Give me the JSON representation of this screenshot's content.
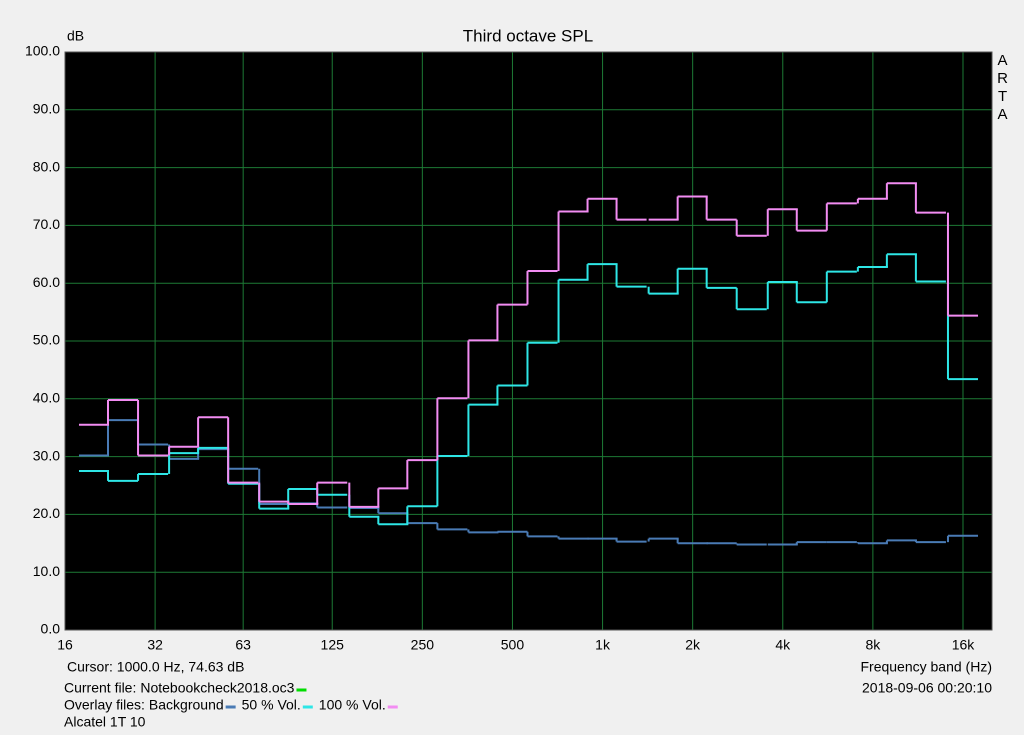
{
  "chart_data": {
    "type": "step",
    "title": "Third octave SPL",
    "y_label": "dB",
    "x_label": "Frequency band (Hz)",
    "watermark": "ARTA",
    "cursor": "Cursor:  1000.0 Hz, 74.63 dB",
    "current_file_label": "Current file:",
    "current_file": "Notebookcheck2018.oc3",
    "current_file_color": "#00dd00",
    "timestamp": "2018-09-06  00:20:10",
    "overlay_label": "Overlay files:",
    "device": "Alcatel 1T 10",
    "x_log": true,
    "grid": true,
    "xlim": [
      16,
      20000
    ],
    "ylim": [
      0,
      100
    ],
    "xticks": [
      16,
      32,
      63,
      125,
      250,
      500,
      {
        "value": 1000,
        "label": "1k"
      },
      {
        "value": 2000,
        "label": "2k"
      },
      {
        "value": 4000,
        "label": "4k"
      },
      {
        "value": 8000,
        "label": "8k"
      },
      {
        "value": 16000,
        "label": "16k"
      }
    ],
    "yticks": [
      {
        "value": 0,
        "label": "0.0"
      },
      {
        "value": 10,
        "label": "10.0"
      },
      {
        "value": 20,
        "label": "20.0"
      },
      {
        "value": 30,
        "label": "30.0"
      },
      {
        "value": 40,
        "label": "40.0"
      },
      {
        "value": 50,
        "label": "50.0"
      },
      {
        "value": 60,
        "label": "60.0"
      },
      {
        "value": 70,
        "label": "70.0"
      },
      {
        "value": 80,
        "label": "80.0"
      },
      {
        "value": 90,
        "label": "90.0"
      },
      {
        "value": 100,
        "label": "100.0"
      }
    ],
    "x": [
      20,
      25,
      31.5,
      40,
      50,
      63,
      80,
      100,
      125,
      160,
      200,
      250,
      315,
      400,
      500,
      630,
      800,
      1000,
      1250,
      1600,
      2000,
      2500,
      3150,
      4000,
      5000,
      6300,
      8000,
      10000,
      12500,
      16000
    ],
    "series": [
      {
        "name": "Background",
        "color": "#4a7bb5",
        "values": [
          30.2,
          36.3,
          32.1,
          29.6,
          31.3,
          27.9,
          21.8,
          21.9,
          21.2,
          21.1,
          20.2,
          18.5,
          17.4,
          16.9,
          17.0,
          16.2,
          15.8,
          15.8,
          15.3,
          15.8,
          15.0,
          15.0,
          14.8,
          14.8,
          15.2,
          15.2,
          15.0,
          15.5,
          15.2,
          16.3
        ]
      },
      {
        "name": "50 % Vol.",
        "color": "#2ee6e6",
        "values": [
          27.5,
          25.8,
          27.0,
          30.6,
          31.5,
          25.3,
          21.0,
          24.4,
          23.4,
          19.6,
          18.3,
          21.4,
          30.1,
          39.0,
          42.3,
          49.7,
          60.6,
          63.3,
          59.4,
          58.2,
          62.5,
          59.2,
          55.5,
          60.2,
          56.7,
          62.0,
          62.8,
          65.0,
          60.3,
          43.4
        ]
      },
      {
        "name": "100 % Vol.",
        "color": "#f28cf2",
        "values": [
          35.5,
          39.8,
          30.2,
          31.7,
          36.8,
          25.5,
          22.2,
          21.8,
          25.5,
          21.3,
          24.5,
          29.4,
          40.1,
          50.1,
          56.3,
          62.1,
          72.4,
          74.6,
          71.0,
          71.0,
          75.0,
          71.0,
          68.2,
          72.8,
          69.1,
          73.8,
          74.6,
          77.3,
          72.2,
          54.4
        ]
      }
    ]
  }
}
